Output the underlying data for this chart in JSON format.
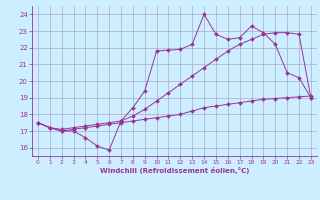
{
  "xlabel": "Windchill (Refroidissement éolien,°C)",
  "bg_color": "#cceeff",
  "grid_color": "#aaaacc",
  "line_color": "#993399",
  "xlim": [
    -0.5,
    23.5
  ],
  "ylim": [
    15.5,
    24.5
  ],
  "yticks": [
    16,
    17,
    18,
    19,
    20,
    21,
    22,
    23,
    24
  ],
  "xticks": [
    0,
    1,
    2,
    3,
    4,
    5,
    6,
    7,
    8,
    9,
    10,
    11,
    12,
    13,
    14,
    15,
    16,
    17,
    18,
    19,
    20,
    21,
    22,
    23
  ],
  "series1_x": [
    0,
    1,
    2,
    3,
    4,
    5,
    6,
    7,
    8,
    9,
    10,
    11,
    12,
    13,
    14,
    15,
    16,
    17,
    18,
    19,
    20,
    21,
    22,
    23
  ],
  "series1_y": [
    17.5,
    17.2,
    17.0,
    17.0,
    16.6,
    16.1,
    15.85,
    17.6,
    18.4,
    19.4,
    21.8,
    21.85,
    21.9,
    22.2,
    24.0,
    22.8,
    22.5,
    22.6,
    23.3,
    22.9,
    22.2,
    20.5,
    20.2,
    19.0
  ],
  "series2_x": [
    0,
    1,
    2,
    3,
    4,
    5,
    6,
    7,
    8,
    9,
    10,
    11,
    12,
    13,
    14,
    15,
    16,
    17,
    18,
    19,
    20,
    21,
    22,
    23
  ],
  "series2_y": [
    17.5,
    17.2,
    17.0,
    17.1,
    17.2,
    17.3,
    17.4,
    17.5,
    17.6,
    17.7,
    17.8,
    17.9,
    18.0,
    18.2,
    18.4,
    18.5,
    18.6,
    18.7,
    18.8,
    18.9,
    18.95,
    19.0,
    19.05,
    19.1
  ],
  "series3_x": [
    0,
    1,
    2,
    3,
    4,
    5,
    6,
    7,
    8,
    9,
    10,
    11,
    12,
    13,
    14,
    15,
    16,
    17,
    18,
    19,
    20,
    21,
    22,
    23
  ],
  "series3_y": [
    17.5,
    17.2,
    17.1,
    17.2,
    17.3,
    17.4,
    17.5,
    17.6,
    17.9,
    18.3,
    18.8,
    19.3,
    19.8,
    20.3,
    20.8,
    21.3,
    21.8,
    22.2,
    22.5,
    22.8,
    22.9,
    22.9,
    22.8,
    19.0
  ]
}
